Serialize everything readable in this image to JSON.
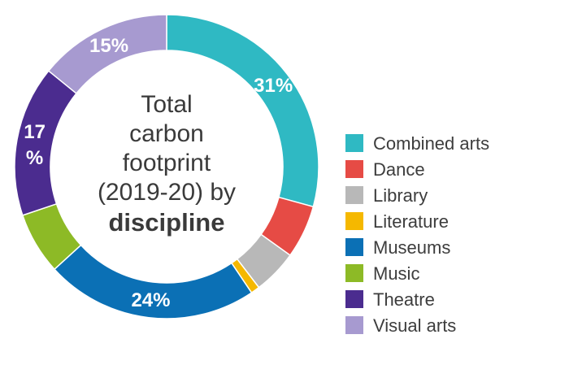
{
  "chart_data": {
    "type": "pie",
    "title_lines": [
      "Total",
      "carbon",
      "footprint",
      "(2019-20) by"
    ],
    "title_bold": "discipline",
    "categories": [
      "Combined arts",
      "Dance",
      "Library",
      "Literature",
      "Museums",
      "Music",
      "Theatre",
      "Visual arts"
    ],
    "values": [
      31,
      6,
      5,
      1,
      24,
      7,
      17,
      15
    ],
    "labels": [
      "31%",
      "",
      "",
      "",
      "24%",
      "",
      "17 %",
      "15%"
    ],
    "colors": [
      "#2fb9c3",
      "#e64b45",
      "#b8b8b8",
      "#f5b800",
      "#0b70b5",
      "#8dba26",
      "#4b2c8f",
      "#a79ad0"
    ],
    "legend": {
      "placement": "right"
    }
  }
}
